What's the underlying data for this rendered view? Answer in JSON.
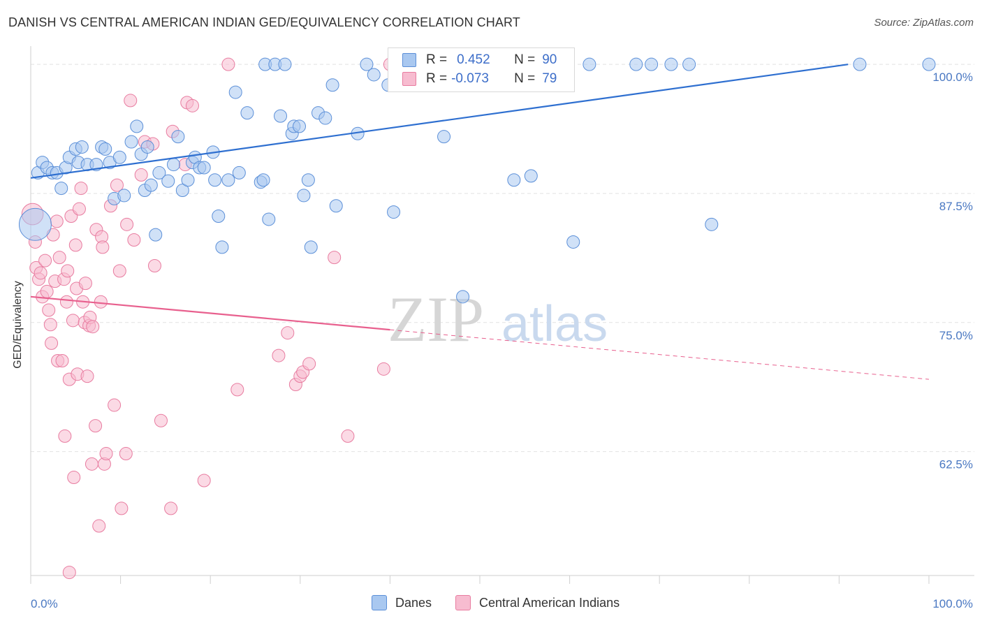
{
  "header": {
    "title": "DANISH VS CENTRAL AMERICAN INDIAN GED/EQUIVALENCY CORRELATION CHART",
    "source": "Source: ZipAtlas.com"
  },
  "legend": {
    "rows": [
      {
        "r_label": "R =",
        "r_value": "0.452",
        "n_label": "N =",
        "n_value": "90"
      },
      {
        "r_label": "R =",
        "r_value": "-0.073",
        "n_label": "N =",
        "n_value": "79"
      }
    ]
  },
  "bottom_legend": {
    "items": [
      {
        "label": "Danes"
      },
      {
        "label": "Central American Indians"
      }
    ]
  },
  "watermark": {
    "zip": "ZIP",
    "atlas": "atlas"
  },
  "colors": {
    "blue_fill": "#a9c8f0",
    "blue_stroke": "#5b8fd8",
    "blue_line": "#2e6fd0",
    "pink_fill": "#f7bcd0",
    "pink_stroke": "#e87ca0",
    "pink_line": "#e8608e",
    "tick_text": "#4a78c2",
    "grid": "#e2e2e2"
  },
  "chart_data": {
    "type": "scatter",
    "title": "DANISH VS CENTRAL AMERICAN INDIAN GED/EQUIVALENCY CORRELATION CHART",
    "xlabel": "",
    "ylabel": "GED/Equivalency",
    "xlim": [
      0,
      100
    ],
    "ylim": [
      50.5,
      101.5
    ],
    "x_tick_labels": [
      "0.0%",
      "100.0%"
    ],
    "y_ticks": [
      100,
      87.5,
      75,
      62.5
    ],
    "y_tick_labels": [
      "100.0%",
      "87.5%",
      "75.0%",
      "62.5%"
    ],
    "grid": true,
    "legend_position": "top-center",
    "series": [
      {
        "name": "Danes",
        "color": "#a9c8f0",
        "trend": {
          "x0": 0,
          "y0": 89.0,
          "x1": 91,
          "y1": 100.0,
          "style": "solid"
        },
        "points": [
          [
            0.5,
            84.5,
            3
          ],
          [
            0.8,
            89.5,
            1
          ],
          [
            1.3,
            90.5,
            1
          ],
          [
            1.8,
            90.0,
            1
          ],
          [
            2.4,
            89.5,
            1
          ],
          [
            2.9,
            89.5,
            1
          ],
          [
            3.4,
            88.0,
            1
          ],
          [
            3.9,
            90.0,
            1
          ],
          [
            4.3,
            91.0,
            1
          ],
          [
            5.0,
            91.8,
            1
          ],
          [
            5.3,
            90.5,
            1
          ],
          [
            5.7,
            92.0,
            1
          ],
          [
            6.3,
            90.3,
            1
          ],
          [
            7.3,
            90.3,
            1
          ],
          [
            7.9,
            92.0,
            1
          ],
          [
            8.3,
            91.8,
            1
          ],
          [
            8.8,
            90.5,
            1
          ],
          [
            9.3,
            87.0,
            1
          ],
          [
            9.9,
            91.0,
            1
          ],
          [
            10.4,
            87.3,
            1
          ],
          [
            11.2,
            92.5,
            1
          ],
          [
            11.8,
            94.0,
            1
          ],
          [
            12.3,
            91.3,
            1
          ],
          [
            12.7,
            87.8,
            1
          ],
          [
            13.0,
            92.0,
            1
          ],
          [
            13.4,
            88.3,
            1
          ],
          [
            13.9,
            83.5,
            1
          ],
          [
            14.3,
            89.5,
            1
          ],
          [
            15.3,
            88.7,
            1
          ],
          [
            15.9,
            90.3,
            1
          ],
          [
            16.4,
            93.0,
            1
          ],
          [
            16.9,
            87.8,
            1
          ],
          [
            17.5,
            88.8,
            1
          ],
          [
            18.0,
            90.5,
            1
          ],
          [
            18.3,
            91.0,
            1
          ],
          [
            18.8,
            90.0,
            1
          ],
          [
            19.3,
            90.0,
            1
          ],
          [
            20.3,
            91.5,
            1
          ],
          [
            20.5,
            88.8,
            1
          ],
          [
            20.9,
            85.3,
            1
          ],
          [
            21.3,
            82.3,
            1
          ],
          [
            22.0,
            88.8,
            1
          ],
          [
            22.8,
            97.3,
            1
          ],
          [
            23.2,
            89.5,
            1
          ],
          [
            24.1,
            95.3,
            1
          ],
          [
            25.6,
            88.6,
            1
          ],
          [
            25.9,
            88.8,
            1
          ],
          [
            26.1,
            100.0,
            1
          ],
          [
            26.5,
            85.0,
            1
          ],
          [
            27.2,
            100.0,
            1
          ],
          [
            27.8,
            95.0,
            1
          ],
          [
            28.3,
            100.0,
            1
          ],
          [
            29.1,
            93.3,
            1
          ],
          [
            29.3,
            94.0,
            1
          ],
          [
            29.9,
            94.0,
            1
          ],
          [
            30.4,
            87.3,
            1
          ],
          [
            30.9,
            88.8,
            1
          ],
          [
            31.2,
            82.3,
            1
          ],
          [
            32.0,
            95.3,
            1
          ],
          [
            32.8,
            94.8,
            1
          ],
          [
            33.6,
            98.0,
            1
          ],
          [
            34.0,
            86.3,
            1
          ],
          [
            36.4,
            93.3,
            1
          ],
          [
            37.4,
            100.0,
            1
          ],
          [
            38.2,
            99.0,
            1
          ],
          [
            39.8,
            98.0,
            1
          ],
          [
            40.4,
            85.7,
            1
          ],
          [
            40.8,
            100.0,
            1
          ],
          [
            41.3,
            100.0,
            1
          ],
          [
            42.0,
            100.0,
            1
          ],
          [
            43.0,
            100.0,
            1
          ],
          [
            43.8,
            100.0,
            1
          ],
          [
            45.5,
            100.0,
            1
          ],
          [
            46.4,
            100.0,
            1
          ],
          [
            46.0,
            93.0,
            1
          ],
          [
            48.1,
            77.5,
            1
          ],
          [
            50.0,
            100.0,
            1
          ],
          [
            51.2,
            100.0,
            1
          ],
          [
            53.4,
            100.0,
            1
          ],
          [
            53.8,
            88.8,
            1
          ],
          [
            55.7,
            89.2,
            1
          ],
          [
            60.4,
            82.8,
            1
          ],
          [
            62.2,
            100.0,
            1
          ],
          [
            67.4,
            100.0,
            1
          ],
          [
            69.1,
            100.0,
            1
          ],
          [
            71.3,
            100.0,
            1
          ],
          [
            73.3,
            100.0,
            1
          ],
          [
            75.8,
            84.5,
            1
          ],
          [
            92.3,
            100.0,
            1
          ],
          [
            100.0,
            100.0,
            1
          ]
        ]
      },
      {
        "name": "Central American Indians",
        "color": "#f7bcd0",
        "trend": {
          "x0": 0,
          "y0": 77.5,
          "x1": 40,
          "y1": 74.3,
          "x2": 100,
          "y2": 69.5,
          "style": "solid-then-dashed"
        },
        "points": [
          [
            0.2,
            85.5,
            2
          ],
          [
            0.5,
            82.8,
            1
          ],
          [
            0.6,
            80.3,
            1
          ],
          [
            0.9,
            79.2,
            1
          ],
          [
            1.1,
            79.8,
            1
          ],
          [
            1.3,
            77.5,
            1
          ],
          [
            1.6,
            81.0,
            1
          ],
          [
            1.8,
            78.0,
            1
          ],
          [
            2.0,
            76.2,
            1
          ],
          [
            2.2,
            74.8,
            1
          ],
          [
            2.3,
            73.0,
            1
          ],
          [
            2.5,
            83.5,
            1
          ],
          [
            2.7,
            79.0,
            1
          ],
          [
            2.9,
            84.8,
            1
          ],
          [
            3.0,
            71.3,
            1
          ],
          [
            3.2,
            81.3,
            1
          ],
          [
            3.5,
            71.3,
            1
          ],
          [
            3.7,
            79.2,
            1
          ],
          [
            3.8,
            64.0,
            1
          ],
          [
            4.0,
            77.0,
            1
          ],
          [
            4.1,
            80.0,
            1
          ],
          [
            4.3,
            69.5,
            1
          ],
          [
            4.5,
            85.3,
            1
          ],
          [
            4.3,
            50.8,
            1
          ],
          [
            4.7,
            75.2,
            1
          ],
          [
            4.8,
            60.0,
            1
          ],
          [
            5.0,
            82.5,
            1
          ],
          [
            5.1,
            78.3,
            1
          ],
          [
            5.2,
            70.0,
            1
          ],
          [
            5.4,
            86.0,
            1
          ],
          [
            5.6,
            88.0,
            1
          ],
          [
            5.8,
            77.0,
            1
          ],
          [
            6.0,
            75.0,
            1
          ],
          [
            6.1,
            78.8,
            1
          ],
          [
            6.3,
            69.8,
            1
          ],
          [
            6.5,
            74.7,
            1
          ],
          [
            6.6,
            75.5,
            1
          ],
          [
            6.8,
            61.3,
            1
          ],
          [
            6.9,
            74.6,
            1
          ],
          [
            7.2,
            65.0,
            1
          ],
          [
            7.3,
            84.0,
            1
          ],
          [
            7.6,
            55.3,
            1
          ],
          [
            7.8,
            77.0,
            1
          ],
          [
            7.9,
            83.3,
            1
          ],
          [
            8.0,
            82.3,
            1
          ],
          [
            8.2,
            61.3,
            1
          ],
          [
            8.4,
            62.3,
            1
          ],
          [
            8.9,
            86.3,
            1
          ],
          [
            9.3,
            67.0,
            1
          ],
          [
            9.6,
            88.3,
            1
          ],
          [
            9.9,
            80.0,
            1
          ],
          [
            10.1,
            57.0,
            1
          ],
          [
            10.6,
            62.3,
            1
          ],
          [
            10.7,
            84.5,
            1
          ],
          [
            11.1,
            96.5,
            1
          ],
          [
            11.5,
            83.0,
            1
          ],
          [
            12.3,
            89.3,
            1
          ],
          [
            12.7,
            92.5,
            1
          ],
          [
            13.6,
            92.3,
            1
          ],
          [
            13.8,
            80.5,
            1
          ],
          [
            14.5,
            65.5,
            1
          ],
          [
            15.6,
            57.0,
            1
          ],
          [
            15.8,
            93.5,
            1
          ],
          [
            17.2,
            90.3,
            1
          ],
          [
            17.4,
            96.3,
            1
          ],
          [
            18.0,
            96.0,
            1
          ],
          [
            19.3,
            59.7,
            1
          ],
          [
            22.0,
            100.0,
            1
          ],
          [
            23.0,
            68.5,
            1
          ],
          [
            27.6,
            71.8,
            1
          ],
          [
            28.6,
            74.0,
            1
          ],
          [
            29.5,
            69.0,
            1
          ],
          [
            30.0,
            69.8,
            1
          ],
          [
            30.3,
            70.2,
            1
          ],
          [
            31.0,
            71.0,
            1
          ],
          [
            33.8,
            81.3,
            1
          ],
          [
            35.3,
            64.0,
            1
          ],
          [
            39.3,
            70.5,
            1
          ],
          [
            40.0,
            100.0,
            1
          ]
        ]
      }
    ]
  }
}
